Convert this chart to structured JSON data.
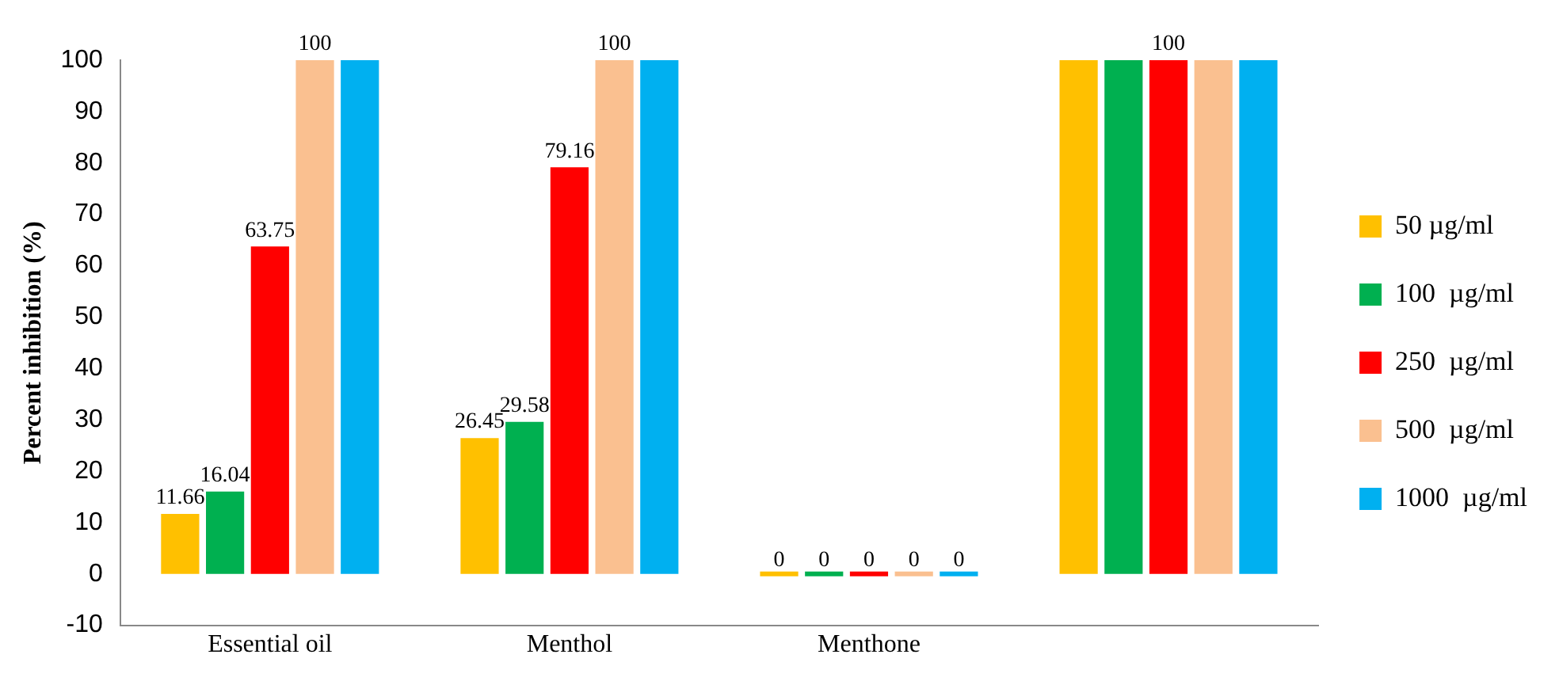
{
  "chart_data": {
    "type": "bar",
    "ylabel": "Percent inhibition (%)",
    "categories": [
      "Essential oil",
      "Menthol",
      "Menthone",
      null
    ],
    "ylim": [
      -10,
      100
    ],
    "yticks": [
      -10,
      0,
      10,
      20,
      30,
      40,
      50,
      60,
      70,
      80,
      90,
      100
    ],
    "grid": false,
    "legend": "right",
    "series": [
      {
        "name": "50 µg/ml",
        "color": "#ffc000",
        "values": [
          11.66,
          26.45,
          0,
          100
        ],
        "value_labels": [
          "11.66",
          "26.45",
          "0",
          null
        ]
      },
      {
        "name": "100  µg/ml",
        "color": "#00b050",
        "values": [
          16.04,
          29.58,
          0,
          100
        ],
        "value_labels": [
          "16.04",
          "29.58",
          "0",
          null
        ]
      },
      {
        "name": "250  µg/ml",
        "color": "#ff0000",
        "values": [
          63.75,
          79.16,
          0,
          100
        ],
        "value_labels": [
          "63.75",
          "79.16",
          "0",
          "100"
        ]
      },
      {
        "name": "500  µg/ml",
        "color": "#fac090",
        "values": [
          100,
          100,
          0,
          100
        ],
        "value_labels": [
          "100",
          "100",
          "0",
          null
        ]
      },
      {
        "name": "1000  µg/ml",
        "color": "#00b0f0",
        "values": [
          100,
          100,
          0,
          100
        ],
        "value_labels": [
          null,
          null,
          "0",
          null
        ]
      }
    ]
  }
}
